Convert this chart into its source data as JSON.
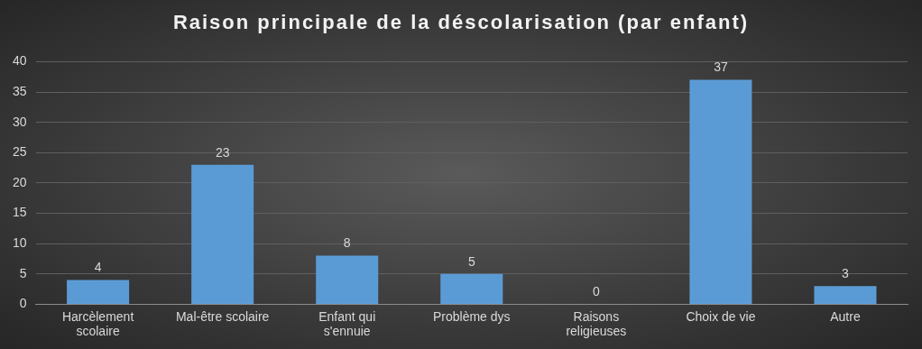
{
  "chart_data": {
    "type": "bar",
    "title": "Raison principale de la déscolarisation (par enfant)",
    "categories": [
      "Harcèlement scolaire",
      "Mal-être scolaire",
      "Enfant qui s'ennuie",
      "Problème dys",
      "Raisons religieuses",
      "Choix de vie",
      "Autre"
    ],
    "values": [
      4,
      23,
      8,
      5,
      0,
      37,
      3
    ],
    "color": "#5b9bd5",
    "ylim": [
      0,
      40
    ],
    "yticks": [
      0,
      5,
      10,
      15,
      20,
      25,
      30,
      35,
      40
    ],
    "grid": "y",
    "data_labels": true,
    "legend": false
  }
}
